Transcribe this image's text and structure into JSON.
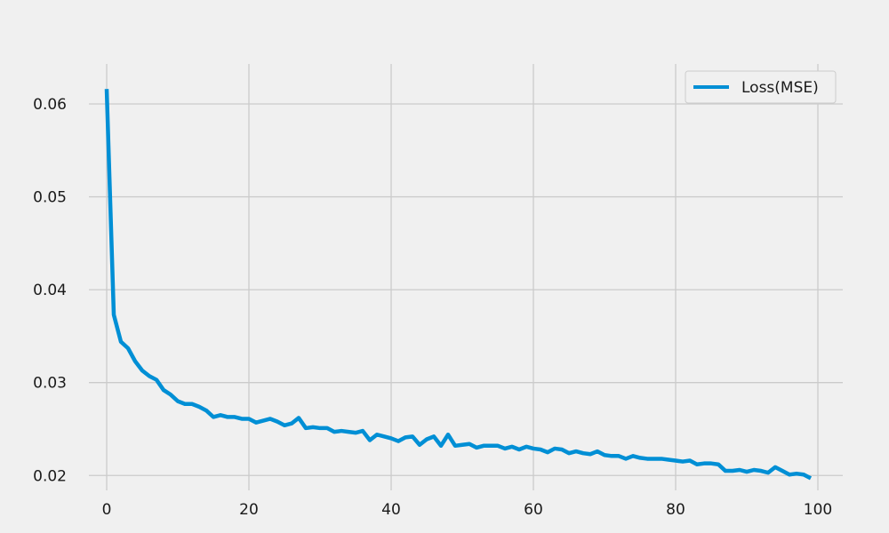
{
  "chart_data": {
    "type": "line",
    "title": "",
    "xlabel": "",
    "ylabel": "",
    "xlim": [
      -2.5,
      103.5
    ],
    "ylim": [
      0.0184,
      0.0643
    ],
    "xticks": [
      0,
      20,
      40,
      60,
      80,
      100
    ],
    "yticks": [
      0.02,
      0.03,
      0.04,
      0.05,
      0.06
    ],
    "xtick_labels": [
      "0",
      "20",
      "40",
      "60",
      "80",
      "100"
    ],
    "ytick_labels": [
      "0.02",
      "0.03",
      "0.04",
      "0.05",
      "0.06"
    ],
    "grid": true,
    "legend_position": "top-right",
    "colors": {
      "series": "#008fd5",
      "grid": "#cbcbcb",
      "background": "#f0f0f0"
    },
    "series": [
      {
        "name": "Loss(MSE)",
        "x": [
          0,
          1,
          2,
          3,
          4,
          5,
          6,
          7,
          8,
          9,
          10,
          11,
          12,
          13,
          14,
          15,
          16,
          17,
          18,
          19,
          20,
          21,
          22,
          23,
          24,
          25,
          26,
          27,
          28,
          29,
          30,
          31,
          32,
          33,
          34,
          35,
          36,
          37,
          38,
          39,
          40,
          41,
          42,
          43,
          44,
          45,
          46,
          47,
          48,
          49,
          50,
          51,
          52,
          53,
          54,
          55,
          56,
          57,
          58,
          59,
          60,
          61,
          62,
          63,
          64,
          65,
          66,
          67,
          68,
          69,
          70,
          71,
          72,
          73,
          74,
          75,
          76,
          77,
          78,
          79,
          80,
          81,
          82,
          83,
          84,
          85,
          86,
          87,
          88,
          89,
          90,
          91,
          92,
          93,
          94,
          95,
          96,
          97,
          98,
          99
        ],
        "values": [
          0.0616,
          0.0373,
          0.0344,
          0.0337,
          0.0323,
          0.0313,
          0.0307,
          0.0303,
          0.0292,
          0.0287,
          0.028,
          0.0277,
          0.0277,
          0.0274,
          0.027,
          0.0263,
          0.0265,
          0.0263,
          0.0263,
          0.0261,
          0.0261,
          0.0257,
          0.0259,
          0.0261,
          0.0258,
          0.0254,
          0.0256,
          0.0262,
          0.0251,
          0.0252,
          0.0251,
          0.0251,
          0.0247,
          0.0248,
          0.0247,
          0.0246,
          0.0248,
          0.0238,
          0.0244,
          0.0242,
          0.024,
          0.0237,
          0.0241,
          0.0242,
          0.0233,
          0.0239,
          0.0242,
          0.0232,
          0.0244,
          0.0232,
          0.0233,
          0.0234,
          0.023,
          0.0232,
          0.0232,
          0.0232,
          0.0229,
          0.0231,
          0.0228,
          0.0231,
          0.0229,
          0.0228,
          0.0225,
          0.0229,
          0.0228,
          0.0224,
          0.0226,
          0.0224,
          0.0223,
          0.0226,
          0.0222,
          0.0221,
          0.0221,
          0.0218,
          0.0221,
          0.0219,
          0.0218,
          0.0218,
          0.0218,
          0.0217,
          0.0216,
          0.0215,
          0.0216,
          0.0212,
          0.0213,
          0.0213,
          0.0212,
          0.0205,
          0.0205,
          0.0206,
          0.0204,
          0.0206,
          0.0205,
          0.0203,
          0.0209,
          0.0205,
          0.0201,
          0.0202,
          0.0201,
          0.0197
        ]
      }
    ]
  }
}
